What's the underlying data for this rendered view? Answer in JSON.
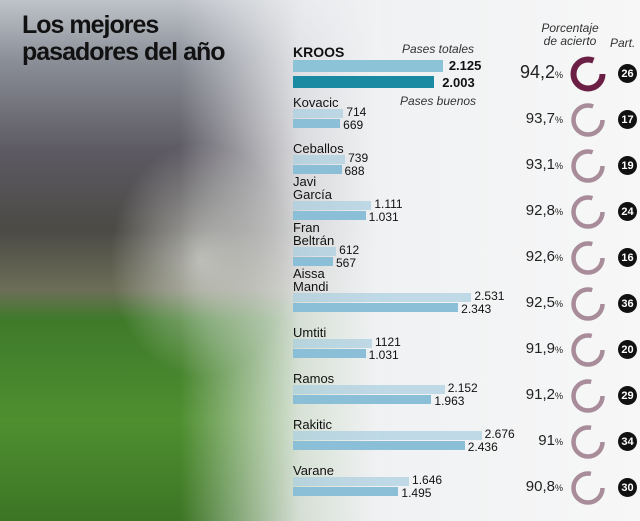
{
  "title_lines": [
    "Los mejores",
    "pasadores del año"
  ],
  "headers": {
    "total": "Pases totales",
    "good": "Pases buenos",
    "pct": [
      "Porcentaje",
      "de acierto"
    ],
    "matches": "Part."
  },
  "colors": {
    "total_bar": "#a9cfe0",
    "good_bar": "#8bbfd8",
    "kroos_total": "#8dc3d6",
    "kroos_good": "#1a8aa3",
    "ring_highlight": "#6b1f45",
    "ring": "#a88c99"
  },
  "chart_data": {
    "type": "bar",
    "series": [
      {
        "name": "Pases totales"
      },
      {
        "name": "Pases buenos"
      }
    ],
    "players": [
      {
        "name": "KROOS",
        "total": 2125,
        "good": 2003,
        "total_label": "2.125",
        "good_label": "2.003",
        "pct": 94.2,
        "pct_label": "94,2",
        "matches": 26
      },
      {
        "name": "Kovacic",
        "total": 714,
        "good": 669,
        "total_label": "714",
        "good_label": "669",
        "pct": 93.7,
        "pct_label": "93,7",
        "matches": 17
      },
      {
        "name": "Ceballos",
        "total": 739,
        "good": 688,
        "total_label": "739",
        "good_label": "688",
        "pct": 93.1,
        "pct_label": "93,1",
        "matches": 19
      },
      {
        "name": "Javi García",
        "total": 1111,
        "good": 1031,
        "total_label": "1.111",
        "good_label": "1.031",
        "pct": 92.8,
        "pct_label": "92,8",
        "matches": 24
      },
      {
        "name": "Fran Beltrán",
        "total": 612,
        "good": 567,
        "total_label": "612",
        "good_label": "567",
        "pct": 92.6,
        "pct_label": "92,6",
        "matches": 16
      },
      {
        "name": "Aissa Mandi",
        "total": 2531,
        "good": 2343,
        "total_label": "2.531",
        "good_label": "2.343",
        "pct": 92.5,
        "pct_label": "92,5",
        "matches": 36
      },
      {
        "name": "Umtiti",
        "total": 1121,
        "good": 1031,
        "total_label": "1121",
        "good_label": "1.031",
        "pct": 91.9,
        "pct_label": "91,9",
        "matches": 20
      },
      {
        "name": "Ramos",
        "total": 2152,
        "good": 1963,
        "total_label": "2.152",
        "good_label": "1.963",
        "pct": 91.2,
        "pct_label": "91,2",
        "matches": 29
      },
      {
        "name": "Rakitic",
        "total": 2676,
        "good": 2436,
        "total_label": "2.676",
        "good_label": "2.436",
        "pct": 91,
        "pct_label": "91",
        "matches": 34
      },
      {
        "name": "Varane",
        "total": 1646,
        "good": 1495,
        "total_label": "1.646",
        "good_label": "1.495",
        "pct": 90.8,
        "pct_label": "90,8",
        "matches": 30
      }
    ]
  }
}
